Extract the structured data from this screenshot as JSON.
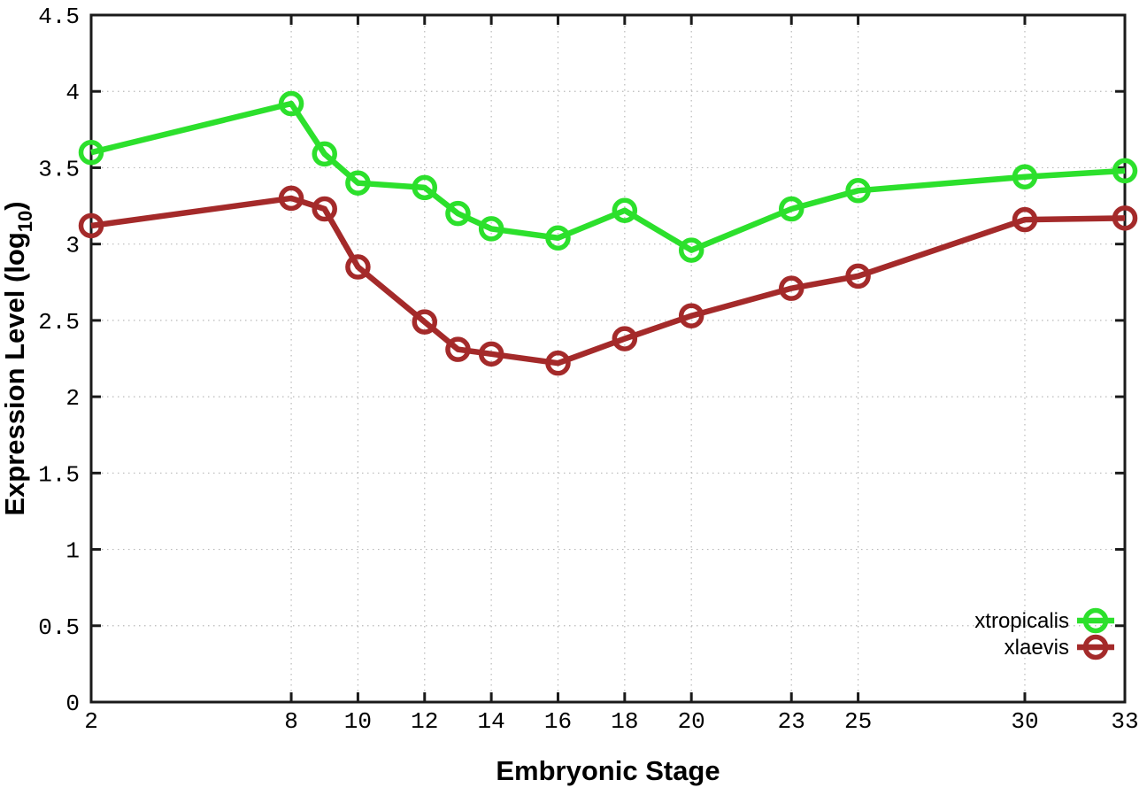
{
  "chart_data": {
    "type": "line",
    "title": "",
    "xlabel": "Embryonic Stage",
    "ylabel": "Expression Level (log10)",
    "ylabel_prefix": "Expression Level (log",
    "ylabel_sub": "10",
    "ylabel_suffix": ")",
    "xlim": [
      2,
      33
    ],
    "ylim": [
      0,
      4.5
    ],
    "grid": true,
    "legend_position": "bottom-right-inside",
    "background_color": "#ffffff",
    "axis_color": "#1a1a1a",
    "grid_color": "#b9b9b9",
    "x_ticks": [
      {
        "value": 2,
        "label": "2"
      },
      {
        "value": 8,
        "label": "8"
      },
      {
        "value": 10,
        "label": "10"
      },
      {
        "value": 12,
        "label": "12"
      },
      {
        "value": 14,
        "label": "14"
      },
      {
        "value": 16,
        "label": "16"
      },
      {
        "value": 18,
        "label": "18"
      },
      {
        "value": 20,
        "label": "20"
      },
      {
        "value": 23,
        "label": "23"
      },
      {
        "value": 25,
        "label": "25"
      },
      {
        "value": 30,
        "label": "30"
      },
      {
        "value": 33,
        "label": "33"
      }
    ],
    "y_ticks": [
      {
        "value": 0,
        "label": "0"
      },
      {
        "value": 0.5,
        "label": "0.5"
      },
      {
        "value": 1,
        "label": "1"
      },
      {
        "value": 1.5,
        "label": "1.5"
      },
      {
        "value": 2,
        "label": "2"
      },
      {
        "value": 2.5,
        "label": "2.5"
      },
      {
        "value": 3,
        "label": "3"
      },
      {
        "value": 3.5,
        "label": "3.5"
      },
      {
        "value": 4,
        "label": "4"
      },
      {
        "value": 4.5,
        "label": "4.5"
      }
    ],
    "x": [
      2,
      8,
      9,
      10,
      12,
      13,
      14,
      16,
      18,
      20,
      23,
      25,
      30,
      33
    ],
    "series": [
      {
        "name": "xtropicalis",
        "color": "#2ce02c",
        "marker": "open-circle",
        "values": [
          3.6,
          3.92,
          3.59,
          3.4,
          3.37,
          3.2,
          3.1,
          3.04,
          3.22,
          2.96,
          3.23,
          3.35,
          3.44,
          3.48
        ]
      },
      {
        "name": "xlaevis",
        "color": "#a42a2a",
        "marker": "open-circle",
        "values": [
          3.12,
          3.3,
          3.23,
          2.85,
          2.49,
          2.31,
          2.28,
          2.22,
          2.38,
          2.53,
          2.71,
          2.79,
          3.16,
          3.17
        ]
      }
    ],
    "legend": [
      "xtropicalis",
      "xlaevis"
    ]
  }
}
